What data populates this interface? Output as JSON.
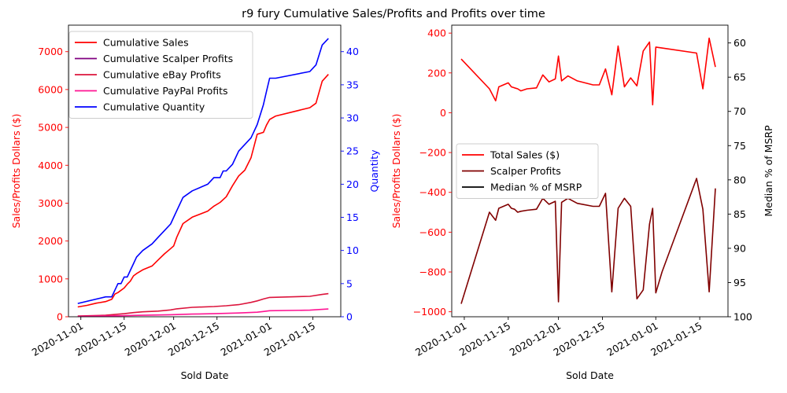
{
  "figure_title": "r9 fury Cumulative Sales/Profits and Profits over time",
  "chart_data": [
    {
      "type": "line",
      "title": "",
      "xlabel": "Sold Date",
      "ylabel": "Sales/Profits Dollars ($)",
      "ylabel_color": "#ff0000",
      "y2label": "Quantity",
      "y2label_color": "#0000ff",
      "xlim": [
        "2020-10-28",
        "2021-01-24"
      ],
      "ylim": [
        0,
        7700
      ],
      "y2lim": [
        0,
        44
      ],
      "x_ticks": [
        "2020-11-01",
        "2020-11-15",
        "2020-12-01",
        "2020-12-15",
        "2021-01-01",
        "2021-01-15"
      ],
      "y_ticks": [
        0,
        1000,
        2000,
        3000,
        4000,
        5000,
        6000,
        7000
      ],
      "y2_ticks": [
        0,
        5,
        10,
        15,
        20,
        25,
        30,
        35,
        40
      ],
      "legend_position": "upper-left",
      "series": [
        {
          "name": "Cumulative Sales",
          "axis": "left",
          "color": "#ff0000",
          "x": [
            "2020-10-31",
            "2020-11-03",
            "2020-11-06",
            "2020-11-09",
            "2020-11-11",
            "2020-11-12",
            "2020-11-13",
            "2020-11-15",
            "2020-11-16",
            "2020-11-17",
            "2020-11-18",
            "2020-11-19",
            "2020-11-21",
            "2020-11-24",
            "2020-11-26",
            "2020-11-28",
            "2020-11-30",
            "2020-12-01",
            "2020-12-02",
            "2020-12-04",
            "2020-12-07",
            "2020-12-12",
            "2020-12-14",
            "2020-12-16",
            "2020-12-18",
            "2020-12-20",
            "2020-12-22",
            "2020-12-24",
            "2020-12-26",
            "2020-12-28",
            "2020-12-30",
            "2020-12-31",
            "2021-01-01",
            "2021-01-03",
            "2021-01-14",
            "2021-01-16",
            "2021-01-18",
            "2021-01-20"
          ],
          "values": [
            260,
            300,
            360,
            400,
            460,
            600,
            640,
            760,
            860,
            940,
            1080,
            1140,
            1240,
            1340,
            1500,
            1660,
            1800,
            1870,
            2100,
            2460,
            2630,
            2790,
            2920,
            3020,
            3170,
            3460,
            3720,
            3870,
            4200,
            4820,
            4870,
            5060,
            5210,
            5300,
            5520,
            5640,
            6220,
            6400
          ]
        },
        {
          "name": "Cumulative Scalper Profits",
          "axis": "left",
          "color": "#800080",
          "x": [],
          "values": []
        },
        {
          "name": "Cumulative eBay Profits",
          "axis": "left",
          "color": "#dc143c",
          "x": [
            "2020-10-31",
            "2020-11-09",
            "2020-11-12",
            "2020-11-15",
            "2020-11-18",
            "2020-11-21",
            "2020-11-26",
            "2020-11-30",
            "2020-12-02",
            "2020-12-07",
            "2020-12-14",
            "2020-12-18",
            "2020-12-22",
            "2020-12-26",
            "2020-12-28",
            "2020-12-30",
            "2021-01-01",
            "2021-01-14",
            "2021-01-18",
            "2021-01-20"
          ],
          "values": [
            20,
            40,
            60,
            80,
            110,
            130,
            150,
            180,
            210,
            250,
            270,
            290,
            320,
            380,
            420,
            470,
            510,
            540,
            590,
            610
          ]
        },
        {
          "name": "Cumulative PayPal Profits",
          "axis": "left",
          "color": "#ff1493",
          "x": [
            "2020-10-31",
            "2020-11-09",
            "2020-11-15",
            "2020-11-21",
            "2020-11-30",
            "2020-12-07",
            "2020-12-14",
            "2020-12-22",
            "2020-12-28",
            "2020-12-30",
            "2021-01-01",
            "2021-01-14",
            "2021-01-18",
            "2021-01-20"
          ],
          "values": [
            10,
            20,
            30,
            40,
            55,
            70,
            80,
            100,
            120,
            140,
            160,
            175,
            195,
            205
          ]
        },
        {
          "name": "Cumulative Quantity",
          "axis": "right",
          "color": "#0000ff",
          "x": [
            "2020-10-31",
            "2020-11-09",
            "2020-11-10",
            "2020-11-11",
            "2020-11-13",
            "2020-11-14",
            "2020-11-15",
            "2020-11-16",
            "2020-11-17",
            "2020-11-18",
            "2020-11-19",
            "2020-11-21",
            "2020-11-24",
            "2020-11-26",
            "2020-11-28",
            "2020-11-30",
            "2020-12-01",
            "2020-12-02",
            "2020-12-04",
            "2020-12-07",
            "2020-12-12",
            "2020-12-14",
            "2020-12-16",
            "2020-12-17",
            "2020-12-18",
            "2020-12-20",
            "2020-12-22",
            "2020-12-24",
            "2020-12-26",
            "2020-12-28",
            "2020-12-30",
            "2020-12-31",
            "2021-01-01",
            "2021-01-03",
            "2021-01-14",
            "2021-01-16",
            "2021-01-18",
            "2021-01-20"
          ],
          "values": [
            2,
            3,
            3,
            3,
            5,
            5,
            6,
            6,
            7,
            8,
            9,
            10,
            11,
            12,
            13,
            14,
            15,
            16,
            18,
            19,
            20,
            21,
            21,
            22,
            22,
            23,
            25,
            26,
            27,
            29,
            32,
            34,
            36,
            36,
            37,
            38,
            41,
            42
          ]
        }
      ]
    },
    {
      "type": "line",
      "title": "",
      "xlabel": "Sold Date",
      "ylabel": "Sales/Profits Dollars ($)",
      "ylabel_color": "#ff0000",
      "y2label": "Median % of MSRP",
      "y2label_color": "#000000",
      "xlim": [
        "2020-10-28",
        "2021-01-24"
      ],
      "ylim": [
        -1025,
        440
      ],
      "y2lim": [
        100,
        57.4
      ],
      "y2_inverted": true,
      "x_ticks": [
        "2020-11-01",
        "2020-11-15",
        "2020-12-01",
        "2020-12-15",
        "2021-01-01",
        "2021-01-15"
      ],
      "y_ticks": [
        -1000,
        -800,
        -600,
        -400,
        -200,
        0,
        200,
        400
      ],
      "y2_ticks": [
        60,
        65,
        70,
        75,
        80,
        85,
        90,
        95,
        100
      ],
      "legend_position": "center-left",
      "series": [
        {
          "name": "Total Sales ($)",
          "axis": "left",
          "color": "#ff0000",
          "x": [
            "2020-10-31",
            "2020-11-09",
            "2020-11-11",
            "2020-11-12",
            "2020-11-15",
            "2020-11-16",
            "2020-11-17",
            "2020-11-18",
            "2020-11-19",
            "2020-11-21",
            "2020-11-24",
            "2020-11-26",
            "2020-11-28",
            "2020-11-30",
            "2020-12-01",
            "2020-12-02",
            "2020-12-04",
            "2020-12-07",
            "2020-12-12",
            "2020-12-14",
            "2020-12-16",
            "2020-12-18",
            "2020-12-20",
            "2020-12-22",
            "2020-12-24",
            "2020-12-26",
            "2020-12-28",
            "2020-12-30",
            "2020-12-31",
            "2021-01-01",
            "2021-01-03",
            "2021-01-14",
            "2021-01-16",
            "2021-01-18",
            "2021-01-20"
          ],
          "values": [
            270,
            120,
            60,
            130,
            150,
            130,
            125,
            120,
            110,
            120,
            125,
            190,
            155,
            170,
            285,
            160,
            185,
            160,
            140,
            140,
            220,
            90,
            335,
            130,
            175,
            135,
            310,
            355,
            40,
            330,
            325,
            300,
            120,
            375,
            230
          ]
        },
        {
          "name": "Scalper Profits",
          "axis": "left",
          "color": "#800000",
          "x": [
            "2020-10-31",
            "2020-11-09",
            "2020-11-11",
            "2020-11-12",
            "2020-11-15",
            "2020-11-16",
            "2020-11-17",
            "2020-11-18",
            "2020-11-19",
            "2020-11-21",
            "2020-11-24",
            "2020-11-26",
            "2020-11-28",
            "2020-11-30",
            "2020-12-01",
            "2020-12-02",
            "2020-12-04",
            "2020-12-07",
            "2020-12-12",
            "2020-12-14",
            "2020-12-16",
            "2020-12-18",
            "2020-12-20",
            "2020-12-22",
            "2020-12-24",
            "2020-12-26",
            "2020-12-28",
            "2020-12-30",
            "2020-12-31",
            "2021-01-01",
            "2021-01-03",
            "2021-01-14",
            "2021-01-16",
            "2021-01-18",
            "2021-01-20"
          ],
          "values": [
            -960,
            -500,
            -540,
            -480,
            -460,
            -480,
            -485,
            -500,
            -495,
            -490,
            -485,
            -430,
            -460,
            -445,
            -950,
            -450,
            -430,
            -455,
            -470,
            -470,
            -405,
            -900,
            -480,
            -430,
            -470,
            -935,
            -890,
            -560,
            -480,
            -905,
            -800,
            -330,
            -485,
            -900,
            -380
          ]
        },
        {
          "name": "Median % of MSRP",
          "axis": "right",
          "color": "#000000",
          "x": [],
          "values": []
        }
      ]
    }
  ]
}
